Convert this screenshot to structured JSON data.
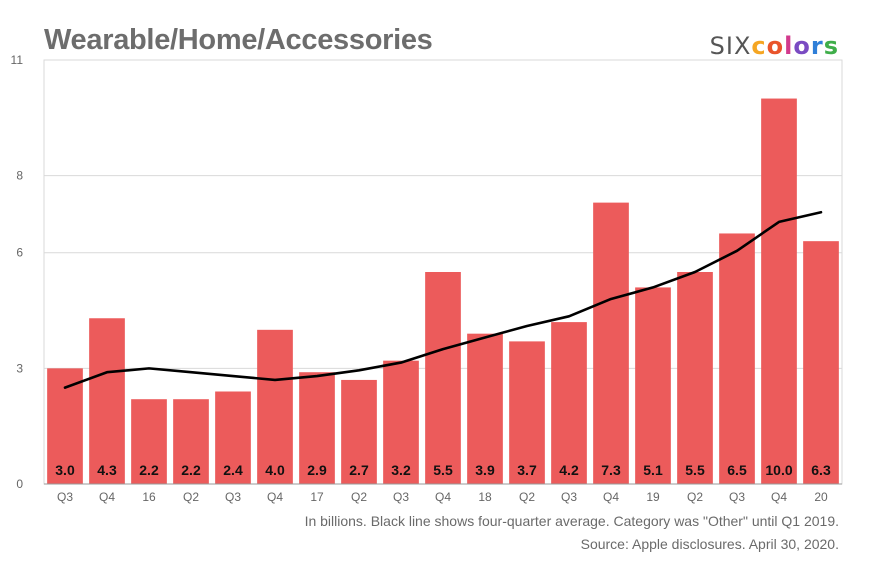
{
  "title": "Wearable/Home/Accessories",
  "logo": {
    "prefix": "SIX",
    "letters": [
      "c",
      "o",
      "l",
      "o",
      "r",
      "s"
    ],
    "letter_colors": [
      "#f5a623",
      "#e9542b",
      "#d23a8c",
      "#7a4bc2",
      "#2f7fd8",
      "#3fae4a"
    ]
  },
  "footnote_1": "In billions. Black line shows four-quarter average. Category was \"Other\" until Q1 2019.",
  "footnote_2": "Source: Apple disclosures. April 30, 2020.",
  "colors": {
    "bar": "#ec5b5b",
    "line": "#000000",
    "grid": "#d9d9d9",
    "axis_text": "#666666"
  },
  "chart_data": {
    "type": "bar",
    "categories": [
      "Q3",
      "Q4",
      "16",
      "Q2",
      "Q3",
      "Q4",
      "17",
      "Q2",
      "Q3",
      "Q4",
      "18",
      "Q2",
      "Q3",
      "Q4",
      "19",
      "Q2",
      "Q3",
      "Q4",
      "20"
    ],
    "values": [
      3.0,
      4.3,
      2.2,
      2.2,
      2.4,
      4.0,
      2.9,
      2.7,
      3.2,
      5.5,
      3.9,
      3.7,
      4.2,
      7.3,
      5.1,
      5.5,
      6.5,
      10.0,
      6.3
    ],
    "data_labels": [
      "3.0",
      "4.3",
      "2.2",
      "2.2",
      "2.4",
      "4.0",
      "2.9",
      "2.7",
      "3.2",
      "5.5",
      "3.9",
      "3.7",
      "4.2",
      "7.3",
      "5.1",
      "5.5",
      "6.5",
      "10.0",
      "6.3"
    ],
    "line_series": {
      "values": [
        2.5,
        2.9,
        3.0,
        2.9,
        2.8,
        2.7,
        2.8,
        2.95,
        3.15,
        3.5,
        3.8,
        4.1,
        4.35,
        4.8,
        5.1,
        5.5,
        6.05,
        6.8,
        7.05
      ]
    },
    "yticks": [
      0,
      3,
      6,
      8,
      11
    ],
    "ylim": [
      0,
      11
    ],
    "grid": true,
    "xlabel": "",
    "ylabel": ""
  }
}
